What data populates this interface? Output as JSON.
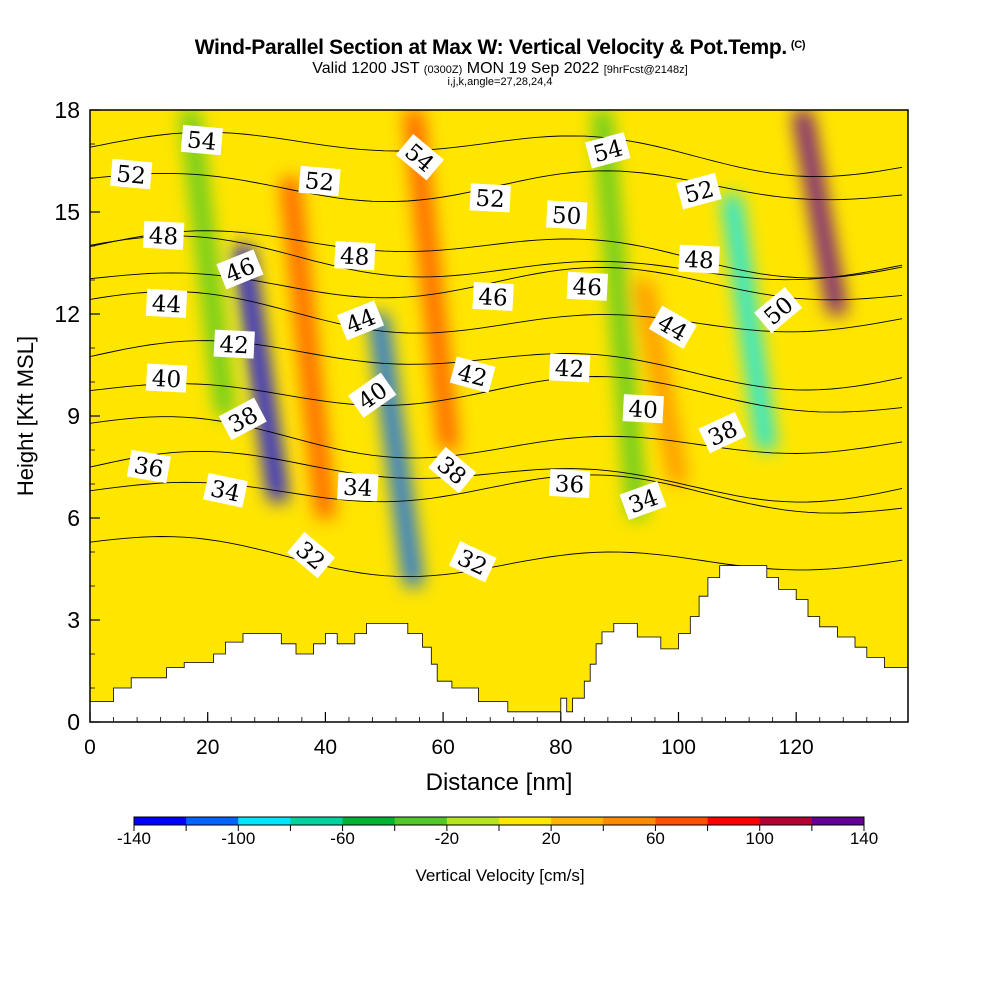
{
  "title": {
    "main": "Wind-Parallel Section at Max W: Vertical Velocity & Pot.Temp.",
    "copyright": "(C)",
    "valid_prefix": "Valid 1200 JST",
    "utc": "(0300Z)",
    "valid_date": "MON 19 Sep 2022",
    "forecast": "[9hrFcst@2148z]",
    "indices": "i,j,k,angle=27,28,24,4"
  },
  "chart_data": {
    "type": "heatmap",
    "xlabel": "Distance [nm]",
    "ylabel": "Height [Kft MSL]",
    "xlim": [
      0,
      139
    ],
    "ylim": [
      0,
      18
    ],
    "x_ticks": [
      0,
      20,
      40,
      60,
      80,
      100,
      120
    ],
    "y_ticks": [
      0,
      3,
      6,
      9,
      12,
      15,
      18
    ],
    "colorbar": {
      "label": "Vertical Velocity [cm/s]",
      "levels": [
        -140,
        -120,
        -100,
        -80,
        -60,
        -40,
        -20,
        0,
        20,
        40,
        60,
        80,
        100,
        120,
        140
      ],
      "tick_labels": [
        -140,
        -100,
        -60,
        -20,
        20,
        60,
        100,
        140
      ],
      "colors": [
        "#0000ff",
        "#0064ff",
        "#00e6ff",
        "#00d2a0",
        "#00b432",
        "#50c828",
        "#b4e61e",
        "#ffe600",
        "#ffb400",
        "#ff8c00",
        "#ff5000",
        "#ff0000",
        "#b40032",
        "#640096"
      ]
    },
    "vertical_velocity_cores": [
      {
        "x": 29,
        "height_range": [
          6.5,
          14
        ],
        "w": -125
      },
      {
        "x": 52,
        "height_range": [
          4,
          12
        ],
        "w": -115
      },
      {
        "x": 112,
        "height_range": [
          8,
          15.5
        ],
        "w": -95
      },
      {
        "x": 37,
        "height_range": [
          6,
          16
        ],
        "w": 70
      },
      {
        "x": 58,
        "height_range": [
          8,
          18
        ],
        "w": 70
      },
      {
        "x": 124,
        "height_range": [
          12,
          18
        ],
        "w": 135
      },
      {
        "x": 97,
        "height_range": [
          7,
          13
        ],
        "w": 45
      },
      {
        "x": 20,
        "height_range": [
          9,
          18
        ],
        "w": -40
      },
      {
        "x": 90,
        "height_range": [
          6,
          18
        ],
        "w": -40
      }
    ],
    "potential_temperature": {
      "units": "K offset",
      "levels": [
        32,
        34,
        36,
        38,
        40,
        42,
        44,
        46,
        48,
        50,
        52,
        54
      ],
      "labels": [
        {
          "text": "52",
          "x": 7,
          "y": 16.1,
          "angle": -5
        },
        {
          "text": "54",
          "x": 19,
          "y": 17.1,
          "angle": -5
        },
        {
          "text": "48",
          "x": 12.5,
          "y": 14.3,
          "angle": -3
        },
        {
          "text": "44",
          "x": 13,
          "y": 12.3,
          "angle": -3
        },
        {
          "text": "40",
          "x": 13,
          "y": 10.1,
          "angle": -3
        },
        {
          "text": "36",
          "x": 10,
          "y": 7.5,
          "angle": -10
        },
        {
          "text": "46",
          "x": 25.5,
          "y": 13.3,
          "angle": 22
        },
        {
          "text": "42",
          "x": 24.5,
          "y": 11.1,
          "angle": -3
        },
        {
          "text": "38",
          "x": 26,
          "y": 8.9,
          "angle": 28
        },
        {
          "text": "34",
          "x": 23,
          "y": 6.8,
          "angle": -12
        },
        {
          "text": "52",
          "x": 39,
          "y": 15.9,
          "angle": -5
        },
        {
          "text": "48",
          "x": 45,
          "y": 13.7,
          "angle": -3
        },
        {
          "text": "44",
          "x": 46,
          "y": 11.8,
          "angle": 22
        },
        {
          "text": "40",
          "x": 48,
          "y": 9.6,
          "angle": 35
        },
        {
          "text": "34",
          "x": 45.5,
          "y": 6.9,
          "angle": -3
        },
        {
          "text": "32",
          "x": 37.5,
          "y": 4.9,
          "angle": -40
        },
        {
          "text": "54",
          "x": 56,
          "y": 16.6,
          "angle": -40
        },
        {
          "text": "38",
          "x": 61.5,
          "y": 7.4,
          "angle": -40
        },
        {
          "text": "52",
          "x": 68,
          "y": 15.4,
          "angle": -3
        },
        {
          "text": "46",
          "x": 68.5,
          "y": 12.5,
          "angle": -3
        },
        {
          "text": "42",
          "x": 65,
          "y": 10.2,
          "angle": -15
        },
        {
          "text": "32",
          "x": 65,
          "y": 4.7,
          "angle": -25
        },
        {
          "text": "50",
          "x": 81,
          "y": 14.9,
          "angle": -3
        },
        {
          "text": "54",
          "x": 88,
          "y": 16.8,
          "angle": 15
        },
        {
          "text": "46",
          "x": 84.5,
          "y": 12.8,
          "angle": -3
        },
        {
          "text": "42",
          "x": 81.5,
          "y": 10.4,
          "angle": -3
        },
        {
          "text": "36",
          "x": 81.5,
          "y": 7.0,
          "angle": -3
        },
        {
          "text": "40",
          "x": 94,
          "y": 9.2,
          "angle": -3
        },
        {
          "text": "34",
          "x": 94,
          "y": 6.5,
          "angle": 20
        },
        {
          "text": "44",
          "x": 99,
          "y": 11.6,
          "angle": -30
        },
        {
          "text": "52",
          "x": 103.5,
          "y": 15.6,
          "angle": 15
        },
        {
          "text": "48",
          "x": 103.5,
          "y": 13.6,
          "angle": -3
        },
        {
          "text": "38",
          "x": 107.5,
          "y": 8.5,
          "angle": 25
        },
        {
          "text": "50",
          "x": 117,
          "y": 12.1,
          "angle": 40
        }
      ]
    },
    "terrain_height_profile_kft": [
      [
        0,
        0.6
      ],
      [
        4,
        0.6
      ],
      [
        4,
        1.0
      ],
      [
        7,
        1.0
      ],
      [
        7,
        1.3
      ],
      [
        13,
        1.3
      ],
      [
        13,
        1.6
      ],
      [
        16,
        1.6
      ],
      [
        16,
        1.75
      ],
      [
        21,
        1.75
      ],
      [
        21,
        2.0
      ],
      [
        23,
        2.0
      ],
      [
        23,
        2.35
      ],
      [
        26,
        2.35
      ],
      [
        26,
        2.6
      ],
      [
        32.5,
        2.6
      ],
      [
        32.5,
        2.3
      ],
      [
        35,
        2.3
      ],
      [
        35,
        2.0
      ],
      [
        38,
        2.0
      ],
      [
        38,
        2.3
      ],
      [
        40,
        2.3
      ],
      [
        40,
        2.6
      ],
      [
        42,
        2.6
      ],
      [
        42,
        2.3
      ],
      [
        45,
        2.3
      ],
      [
        45,
        2.6
      ],
      [
        47,
        2.6
      ],
      [
        47,
        2.9
      ],
      [
        54,
        2.9
      ],
      [
        54,
        2.6
      ],
      [
        56.5,
        2.6
      ],
      [
        56.5,
        2.2
      ],
      [
        58,
        2.2
      ],
      [
        58,
        1.7
      ],
      [
        59,
        1.7
      ],
      [
        59,
        1.2
      ],
      [
        61.5,
        1.2
      ],
      [
        61.5,
        1.0
      ],
      [
        66,
        1.0
      ],
      [
        66,
        0.6
      ],
      [
        71,
        0.6
      ],
      [
        71,
        0.3
      ],
      [
        80,
        0.3
      ],
      [
        80,
        0.7
      ],
      [
        81,
        0.7
      ],
      [
        81,
        0.3
      ],
      [
        82,
        0.3
      ],
      [
        82,
        0.7
      ],
      [
        84,
        0.7
      ],
      [
        84,
        1.2
      ],
      [
        85,
        1.2
      ],
      [
        85,
        1.7
      ],
      [
        86,
        1.7
      ],
      [
        86,
        2.3
      ],
      [
        87,
        2.3
      ],
      [
        87,
        2.65
      ],
      [
        89,
        2.65
      ],
      [
        89,
        2.9
      ],
      [
        93,
        2.9
      ],
      [
        93,
        2.5
      ],
      [
        97,
        2.5
      ],
      [
        97,
        2.15
      ],
      [
        100,
        2.15
      ],
      [
        100,
        2.6
      ],
      [
        102,
        2.6
      ],
      [
        102,
        3.1
      ],
      [
        103.5,
        3.1
      ],
      [
        103.5,
        3.7
      ],
      [
        105,
        3.7
      ],
      [
        105,
        4.25
      ],
      [
        107,
        4.25
      ],
      [
        107,
        4.6
      ],
      [
        115,
        4.6
      ],
      [
        115,
        4.25
      ],
      [
        117,
        4.25
      ],
      [
        117,
        3.9
      ],
      [
        120,
        3.9
      ],
      [
        120,
        3.6
      ],
      [
        122,
        3.6
      ],
      [
        122,
        3.1
      ],
      [
        124,
        3.1
      ],
      [
        124,
        2.8
      ],
      [
        127,
        2.8
      ],
      [
        127,
        2.5
      ],
      [
        130,
        2.5
      ],
      [
        130,
        2.2
      ],
      [
        132,
        2.2
      ],
      [
        132,
        1.9
      ],
      [
        135,
        1.9
      ],
      [
        135,
        1.6
      ],
      [
        139,
        1.6
      ]
    ]
  }
}
